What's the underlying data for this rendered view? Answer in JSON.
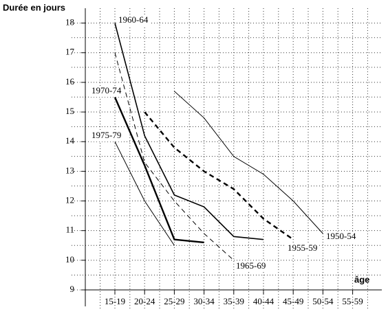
{
  "chart_data": {
    "type": "line",
    "y_label": "Durée en jours",
    "x_label": "âge",
    "categories": [
      "15-19",
      "20-24",
      "25-29",
      "30-34",
      "35-39",
      "40-44",
      "45-49",
      "50-54",
      "55-59"
    ],
    "ylim": [
      9,
      18.5
    ],
    "yticks": [
      9,
      10,
      11,
      12,
      13,
      14,
      15,
      16,
      17,
      18
    ],
    "grid": true,
    "series": [
      {
        "name": "1960-64",
        "color": "#000000",
        "style": "solid",
        "weight": "medium",
        "values": [
          18.0,
          14.2,
          12.2,
          11.8,
          10.8,
          10.7,
          null,
          null,
          null
        ]
      },
      {
        "name": "1970-74",
        "color": "#000000",
        "style": "solid",
        "weight": "thick",
        "values": [
          15.5,
          13.2,
          10.7,
          10.6,
          null,
          null,
          null,
          null,
          null
        ]
      },
      {
        "name": "1975-79",
        "color": "#000000",
        "style": "solid",
        "weight": "thin",
        "values": [
          14.0,
          12.0,
          10.5,
          null,
          null,
          null,
          null,
          null,
          null
        ]
      },
      {
        "name": "1965-69",
        "color": "#000000",
        "style": "dashed",
        "weight": "thin",
        "values": [
          17.0,
          13.3,
          12.0,
          10.9,
          10.0,
          null,
          null,
          null,
          null
        ]
      },
      {
        "name": "1955-59",
        "color": "#000000",
        "style": "dashed",
        "weight": "thick",
        "values": [
          null,
          15.0,
          13.8,
          13.0,
          12.4,
          11.4,
          10.7,
          null,
          null
        ]
      },
      {
        "name": "1950-54",
        "color": "#000000",
        "style": "solid",
        "weight": "thin",
        "values": [
          null,
          null,
          15.7,
          14.8,
          13.5,
          12.9,
          12.0,
          10.9,
          null
        ]
      }
    ]
  }
}
